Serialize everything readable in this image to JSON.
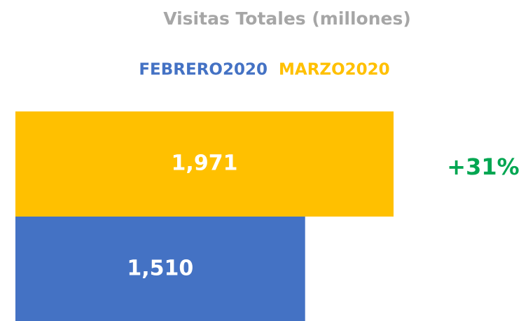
{
  "chart_data": {
    "type": "bar",
    "orientation": "horizontal",
    "title": "Visitas Totales (millones)",
    "series": [
      {
        "name": "FEBRERO2020",
        "color": "#4472c4",
        "values": [
          1510
        ],
        "value_labels": [
          "1,510"
        ]
      },
      {
        "name": "MARZO2020",
        "color": "#ffc000",
        "values": [
          1971
        ],
        "value_labels": [
          "1,971"
        ]
      }
    ],
    "annotation": {
      "text": "+31%",
      "color": "#00a651"
    },
    "grid": false
  }
}
